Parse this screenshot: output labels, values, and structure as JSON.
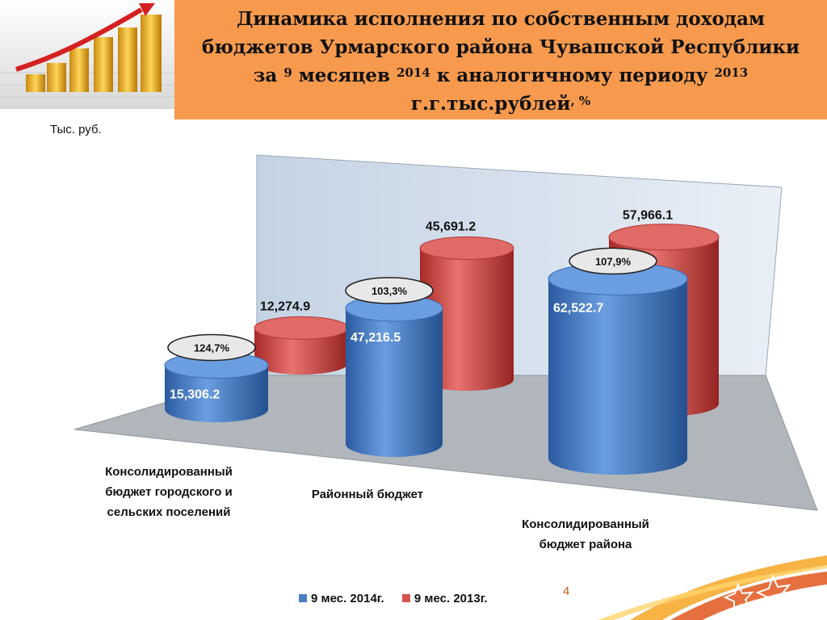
{
  "slide": {
    "title_parts": {
      "line1": "Динамика исполнения по собственным  доходам",
      "line2": "бюджетов Урмарского района Чувашской Республики",
      "line3_prefix": "за ",
      "line3_sup1": "9",
      "line3_mid": " месяцев ",
      "line3_sup2": "2014",
      "line3_suffix": " к аналогичному периоду ",
      "line3_sup3": "2013",
      "line4_main": "г.г.тыс.рублей",
      "line4_sup": ", %"
    },
    "unit_label": "Тыс. руб.",
    "page_number": "4"
  },
  "chart_data": {
    "type": "bar",
    "categories": [
      "Консолидированный бюджет городского и сельских поселений",
      "Районный бюджет",
      "Консолидированный бюджет района"
    ],
    "series": [
      {
        "name": "9 мес. 2014г.",
        "values": [
          15306.2,
          47216.5,
          62522.7
        ],
        "labels": [
          "15,306.2",
          "47,216.5",
          "62,522.7"
        ],
        "color": "#4a7fc8"
      },
      {
        "name": "9 мес. 2013г.",
        "values": [
          12274.9,
          45691.2,
          57966.1
        ],
        "labels": [
          "12,274.9",
          "45,691.2",
          "57,966.1"
        ],
        "color": "#d9534f"
      }
    ],
    "ratios": [
      "124,7%",
      "103,3%",
      "107,9%"
    ],
    "legend_position": "bottom",
    "grid": false
  }
}
